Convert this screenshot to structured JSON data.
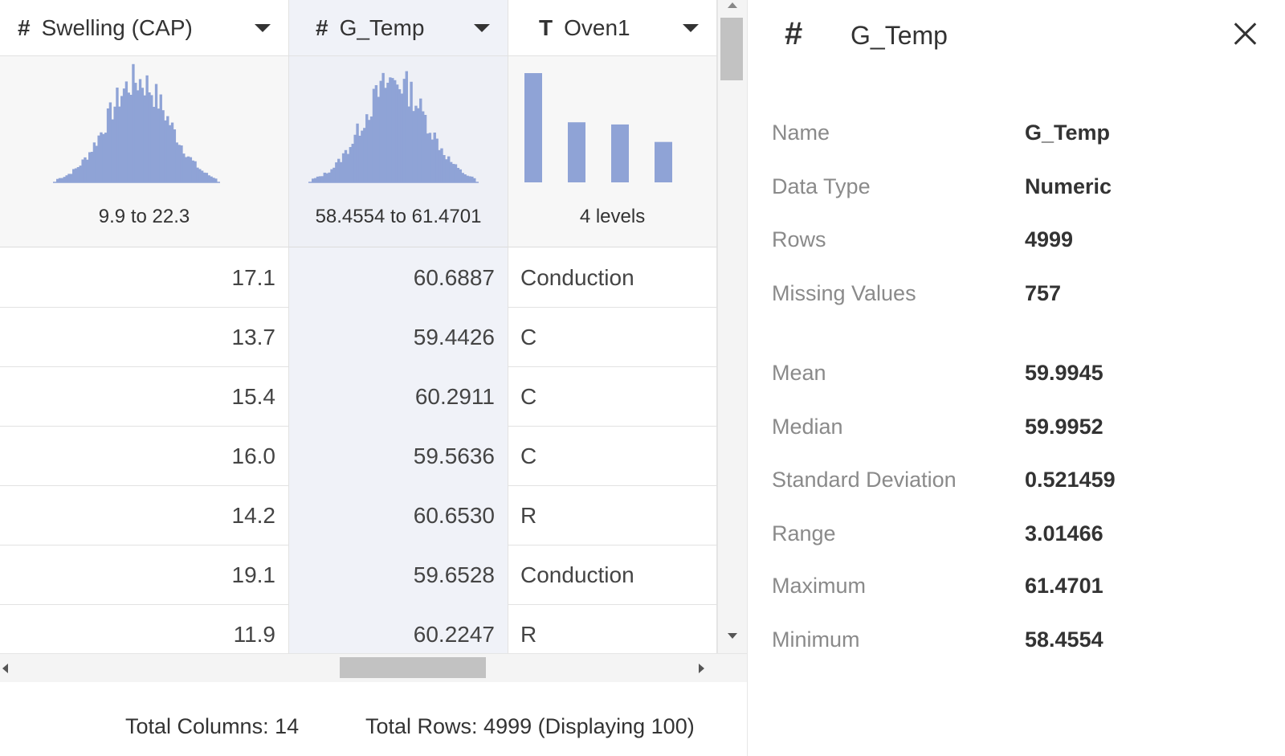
{
  "grid": {
    "columns": [
      {
        "type_icon": "#",
        "name": "Swelling (CAP)",
        "summary": "9.9 to 22.3"
      },
      {
        "type_icon": "#",
        "name": "G_Temp",
        "summary": "58.4554 to 61.4701"
      },
      {
        "type_icon": "T",
        "name": "Oven1",
        "summary": "4 levels"
      }
    ],
    "rows": [
      [
        "17.1",
        "60.6887",
        "Conduction"
      ],
      [
        "13.7",
        "59.4426",
        "C"
      ],
      [
        "15.4",
        "60.2911",
        "C"
      ],
      [
        "16.0",
        "59.5636",
        "C"
      ],
      [
        "14.2",
        "60.6530",
        "R"
      ],
      [
        "19.1",
        "59.6528",
        "Conduction"
      ],
      [
        "11.9",
        "60.2247",
        "R"
      ]
    ],
    "oven_level_heights": [
      1.0,
      0.55,
      0.53,
      0.37
    ],
    "histogram_color": "#8fa3d6"
  },
  "footer": {
    "total_columns": "Total Columns: 14",
    "total_rows": "Total Rows: 4999 (Displaying 100)"
  },
  "panel": {
    "type_icon": "#",
    "title": "G_Temp",
    "stats": [
      {
        "label": "Name",
        "value": "G_Temp"
      },
      {
        "label": "Data Type",
        "value": "Numeric"
      },
      {
        "label": "Rows",
        "value": "4999"
      },
      {
        "label": "Missing Values",
        "value": "757"
      },
      {
        "label": "Mean",
        "value": "59.9945"
      },
      {
        "label": "Median",
        "value": "59.9952"
      },
      {
        "label": "Standard Deviation",
        "value": "0.521459"
      },
      {
        "label": "Range",
        "value": "3.01466"
      },
      {
        "label": "Maximum",
        "value": "61.4701"
      },
      {
        "label": "Minimum",
        "value": "58.4554"
      }
    ]
  }
}
